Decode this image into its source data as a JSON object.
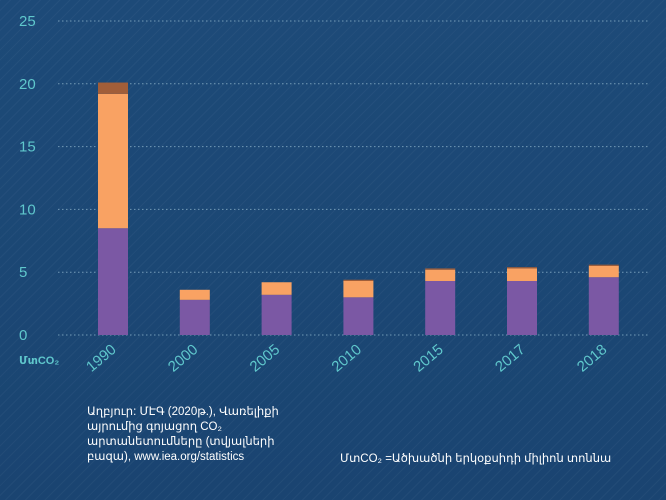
{
  "chart_data": {
    "type": "bar",
    "stacked": true,
    "categories": [
      "1990",
      "2000",
      "2005",
      "2010",
      "2015",
      "2017",
      "2018"
    ],
    "series": [
      {
        "values": [
          8.5,
          2.8,
          3.2,
          3.0,
          4.3,
          4.3,
          4.6
        ],
        "color": "#7b58a4"
      },
      {
        "values": [
          10.7,
          0.8,
          1.0,
          1.3,
          0.9,
          1.0,
          0.9
        ],
        "color": "#f9a263"
      },
      {
        "values": [
          0.9,
          0.0,
          0.0,
          0.1,
          0.1,
          0.1,
          0.1
        ],
        "color": "#a15e39"
      }
    ],
    "ylim": [
      0,
      25
    ],
    "yticks": [
      0,
      5,
      10,
      15,
      20,
      25
    ],
    "ylabel": "ՄտCO₂",
    "xlabel": "",
    "grid": true,
    "grid_style": "dotted"
  },
  "source_lines": [
    "Աղբյուր: ՄԷԳ (2020թ.), Վառելիքի",
    "այրումից գոյացող CO₂",
    "արտանետումները (տվյալների",
    "բազա), www.iea.org/statistics"
  ],
  "unit_note": "ՄտCO₂ =Ածխածնի երկօքսիդի միլիոն տոննա",
  "colors": {
    "background": "#1b4774",
    "axis_text": "#5fc7cc",
    "grid": "#8fb5cc",
    "note_text": "#ffffff"
  }
}
